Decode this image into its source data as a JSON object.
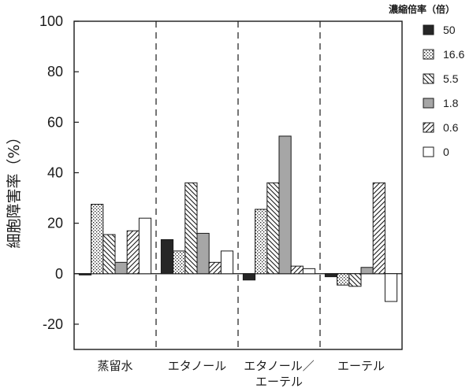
{
  "chart_data": {
    "type": "bar",
    "categories": [
      "蒸留水",
      "エタノール",
      "エタノール／\nエーテル",
      "エーテル"
    ],
    "series": [
      {
        "name": "50",
        "pattern": "solid",
        "values": [
          -0.5,
          13.5,
          -2.5,
          -1.2
        ]
      },
      {
        "name": "16.6",
        "pattern": "dots",
        "values": [
          27.5,
          9.0,
          25.5,
          -4.5
        ]
      },
      {
        "name": "5.5",
        "pattern": "backhatch",
        "values": [
          15.5,
          36.0,
          36.0,
          -5.0
        ]
      },
      {
        "name": "1.8",
        "pattern": "gray",
        "values": [
          4.5,
          16.0,
          54.5,
          2.5
        ]
      },
      {
        "name": "0.6",
        "pattern": "hatch",
        "values": [
          17.0,
          4.5,
          3.0,
          36.0
        ]
      },
      {
        "name": "0",
        "pattern": "white",
        "values": [
          22.0,
          9.0,
          2.0,
          -11.0
        ]
      }
    ],
    "ylabel": "細胞障害率（%）",
    "xlabel": "",
    "ylim": [
      -30,
      100
    ],
    "yticks": [
      100,
      80,
      60,
      40,
      20,
      0,
      -20
    ],
    "legend": {
      "title": "濃縮倍率（倍）",
      "placement": "right"
    },
    "grid": false,
    "colors": {
      "solid": "#262626",
      "gray": "#a6a6a6",
      "stroke": "#1a1a1a"
    }
  }
}
